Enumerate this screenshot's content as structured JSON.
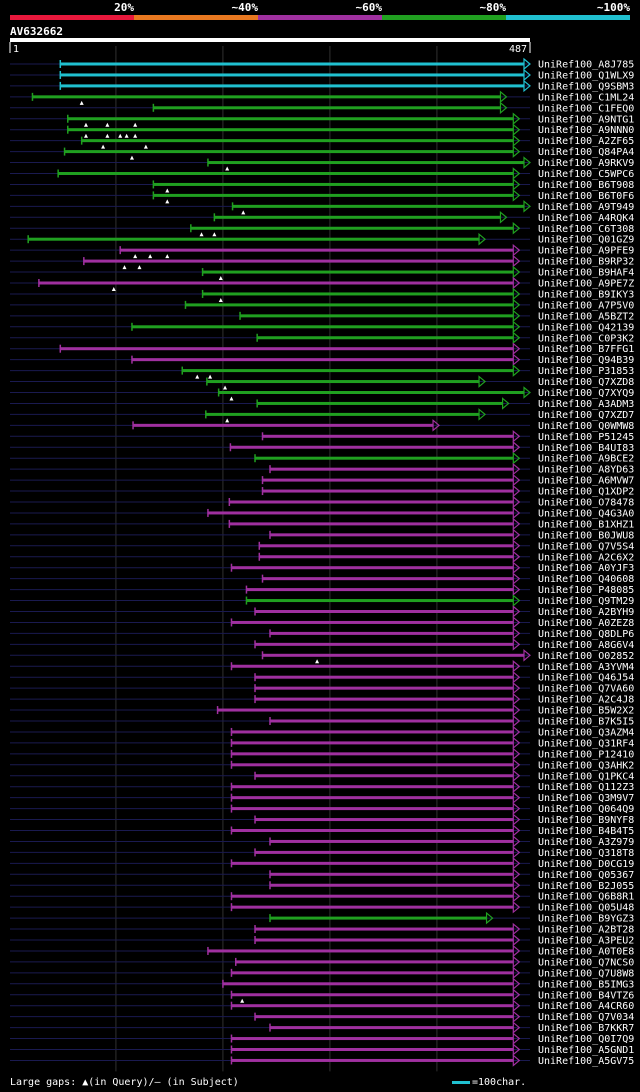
{
  "query": {
    "name": "AV632662",
    "start": "1",
    "end": "487",
    "length": 487
  },
  "identity_bins": [
    {
      "label": "20%",
      "color": "#e8183c"
    },
    {
      "label": "~40%",
      "color": "#e87820"
    },
    {
      "label": "~60%",
      "color": "#a030a0"
    },
    {
      "label": "~80%",
      "color": "#20a020"
    },
    {
      "label": "~100%",
      "color": "#20c0d0"
    }
  ],
  "footer": {
    "prefix": "Large gaps: ",
    "query_gap_text": "(in Query)/",
    "subject_gap_text": "— (in Subject)",
    "legend_text": "=100char."
  },
  "colors": {
    "cyan": "#20c0d0",
    "green": "#20a020",
    "magenta": "#a030a0",
    "navy": "#1a1a50",
    "gray": "#303030"
  },
  "chart_data": {
    "type": "alignment",
    "x_range": [
      1,
      487
    ],
    "hits": [
      {
        "name": "UniRef100_A8J785",
        "start": 48,
        "end": 487,
        "color": "cyan",
        "marks": []
      },
      {
        "name": "UniRef100_Q1WLX9",
        "start": 48,
        "end": 487,
        "color": "cyan",
        "marks": []
      },
      {
        "name": "UniRef100_Q9SBM3",
        "start": 48,
        "end": 487,
        "color": "cyan",
        "marks": []
      },
      {
        "name": "UniRef100_C1ML24",
        "start": 22,
        "end": 465,
        "color": "green",
        "marks": [
          68
        ]
      },
      {
        "name": "UniRef100_C1FEQ0",
        "start": 135,
        "end": 465,
        "color": "green",
        "marks": []
      },
      {
        "name": "UniRef100_A9NTG1",
        "start": 55,
        "end": 477,
        "color": "green",
        "marks": [
          72,
          92,
          118
        ]
      },
      {
        "name": "UniRef100_A9NNN0",
        "start": 55,
        "end": 477,
        "color": "green",
        "marks": [
          72,
          92,
          104,
          110,
          118
        ]
      },
      {
        "name": "UniRef100_A2ZF65",
        "start": 68,
        "end": 477,
        "color": "green",
        "marks": [
          88,
          128
        ]
      },
      {
        "name": "UniRef100_Q84PA4",
        "start": 52,
        "end": 477,
        "color": "green",
        "marks": [
          115
        ]
      },
      {
        "name": "UniRef100_A9RKV9",
        "start": 186,
        "end": 487,
        "color": "green",
        "marks": [
          204
        ]
      },
      {
        "name": "UniRef100_C5WPC6",
        "start": 46,
        "end": 477,
        "color": "green",
        "marks": []
      },
      {
        "name": "UniRef100_B6T908",
        "start": 135,
        "end": 477,
        "color": "green",
        "marks": [
          148
        ]
      },
      {
        "name": "UniRef100_B6T0F6",
        "start": 135,
        "end": 477,
        "color": "green",
        "marks": [
          148
        ]
      },
      {
        "name": "UniRef100_A9T949",
        "start": 209,
        "end": 487,
        "color": "green",
        "marks": [
          219
        ]
      },
      {
        "name": "UniRef100_A4RQK4",
        "start": 192,
        "end": 465,
        "color": "green",
        "marks": []
      },
      {
        "name": "UniRef100_C6T308",
        "start": 170,
        "end": 477,
        "color": "green",
        "marks": [
          180,
          192
        ]
      },
      {
        "name": "UniRef100_Q01GZ9",
        "start": 18,
        "end": 445,
        "color": "green",
        "marks": []
      },
      {
        "name": "UniRef100_A9PFE9",
        "start": 104,
        "end": 477,
        "color": "magenta",
        "marks": [
          118,
          132,
          148
        ]
      },
      {
        "name": "UniRef100_B9RP32",
        "start": 70,
        "end": 477,
        "color": "magenta",
        "marks": [
          108,
          122
        ]
      },
      {
        "name": "UniRef100_B9HAF4",
        "start": 181,
        "end": 477,
        "color": "green",
        "marks": [
          198
        ]
      },
      {
        "name": "UniRef100_A9PE7Z",
        "start": 28,
        "end": 477,
        "color": "magenta",
        "marks": [
          98
        ]
      },
      {
        "name": "UniRef100_B9IKY3",
        "start": 181,
        "end": 477,
        "color": "green",
        "marks": [
          198
        ]
      },
      {
        "name": "UniRef100_A7P5V0",
        "start": 165,
        "end": 477,
        "color": "green",
        "marks": []
      },
      {
        "name": "UniRef100_A5BZT2",
        "start": 216,
        "end": 477,
        "color": "green",
        "marks": []
      },
      {
        "name": "UniRef100_Q42139",
        "start": 115,
        "end": 477,
        "color": "green",
        "marks": []
      },
      {
        "name": "UniRef100_C0P3K2",
        "start": 232,
        "end": 477,
        "color": "green",
        "marks": []
      },
      {
        "name": "UniRef100_B7FFG1",
        "start": 48,
        "end": 477,
        "color": "magenta",
        "marks": []
      },
      {
        "name": "UniRef100_Q94B39",
        "start": 115,
        "end": 477,
        "color": "magenta",
        "marks": []
      },
      {
        "name": "UniRef100_P31853",
        "start": 162,
        "end": 477,
        "color": "green",
        "marks": [
          176,
          188
        ]
      },
      {
        "name": "UniRef100_Q7XZD8",
        "start": 185,
        "end": 445,
        "color": "green",
        "marks": [
          202
        ]
      },
      {
        "name": "UniRef100_Q7XYQ9",
        "start": 196,
        "end": 487,
        "color": "green",
        "marks": [
          208
        ]
      },
      {
        "name": "UniRef100_A3ADM3",
        "start": 232,
        "end": 467,
        "color": "green",
        "marks": []
      },
      {
        "name": "UniRef100_Q7XZD7",
        "start": 184,
        "end": 445,
        "color": "green",
        "marks": [
          204
        ]
      },
      {
        "name": "UniRef100_Q0WMW8",
        "start": 116,
        "end": 402,
        "color": "magenta",
        "marks": []
      },
      {
        "name": "UniRef100_P51245",
        "start": 237,
        "end": 477,
        "color": "magenta",
        "marks": []
      },
      {
        "name": "UniRef100_B4UI83",
        "start": 207,
        "end": 477,
        "color": "magenta",
        "marks": []
      },
      {
        "name": "UniRef100_A9BCE2",
        "start": 230,
        "end": 477,
        "color": "green",
        "marks": []
      },
      {
        "name": "UniRef100_A8YD63",
        "start": 244,
        "end": 477,
        "color": "magenta",
        "marks": []
      },
      {
        "name": "UniRef100_A6MVW7",
        "start": 237,
        "end": 477,
        "color": "magenta",
        "marks": []
      },
      {
        "name": "UniRef100_Q1XDP2",
        "start": 237,
        "end": 477,
        "color": "magenta",
        "marks": []
      },
      {
        "name": "UniRef100_O78478",
        "start": 206,
        "end": 477,
        "color": "magenta",
        "marks": []
      },
      {
        "name": "UniRef100_Q4G3A0",
        "start": 186,
        "end": 477,
        "color": "magenta",
        "marks": []
      },
      {
        "name": "UniRef100_B1XHZ1",
        "start": 206,
        "end": 477,
        "color": "magenta",
        "marks": []
      },
      {
        "name": "UniRef100_B0JWU8",
        "start": 244,
        "end": 477,
        "color": "magenta",
        "marks": []
      },
      {
        "name": "UniRef100_Q7V5S4",
        "start": 234,
        "end": 477,
        "color": "magenta",
        "marks": []
      },
      {
        "name": "UniRef100_A2C6X2",
        "start": 234,
        "end": 477,
        "color": "magenta",
        "marks": []
      },
      {
        "name": "UniRef100_A0YJF3",
        "start": 208,
        "end": 477,
        "color": "magenta",
        "marks": []
      },
      {
        "name": "UniRef100_Q40608",
        "start": 237,
        "end": 477,
        "color": "magenta",
        "marks": []
      },
      {
        "name": "UniRef100_P48085",
        "start": 222,
        "end": 477,
        "color": "magenta",
        "marks": []
      },
      {
        "name": "UniRef100_Q9TM29",
        "start": 222,
        "end": 477,
        "color": "green",
        "marks": []
      },
      {
        "name": "UniRef100_A2BYH9",
        "start": 230,
        "end": 477,
        "color": "magenta",
        "marks": []
      },
      {
        "name": "UniRef100_A0ZEZ8",
        "start": 208,
        "end": 477,
        "color": "magenta",
        "marks": []
      },
      {
        "name": "UniRef100_Q8DLP6",
        "start": 244,
        "end": 477,
        "color": "magenta",
        "marks": []
      },
      {
        "name": "UniRef100_A8G6V4",
        "start": 230,
        "end": 477,
        "color": "magenta",
        "marks": []
      },
      {
        "name": "UniRef100_O02852",
        "start": 237,
        "end": 487,
        "color": "magenta",
        "marks": [
          288
        ]
      },
      {
        "name": "UniRef100_A3YVM4",
        "start": 208,
        "end": 477,
        "color": "magenta",
        "marks": []
      },
      {
        "name": "UniRef100_Q46J54",
        "start": 230,
        "end": 477,
        "color": "magenta",
        "marks": []
      },
      {
        "name": "UniRef100_Q7VA60",
        "start": 230,
        "end": 477,
        "color": "magenta",
        "marks": []
      },
      {
        "name": "UniRef100_A2C4J8",
        "start": 230,
        "end": 477,
        "color": "magenta",
        "marks": []
      },
      {
        "name": "UniRef100_B5W2X2",
        "start": 195,
        "end": 477,
        "color": "magenta",
        "marks": []
      },
      {
        "name": "UniRef100_B7K5I5",
        "start": 244,
        "end": 477,
        "color": "magenta",
        "marks": []
      },
      {
        "name": "UniRef100_Q3AZM4",
        "start": 208,
        "end": 477,
        "color": "magenta",
        "marks": []
      },
      {
        "name": "UniRef100_Q31RF4",
        "start": 208,
        "end": 477,
        "color": "magenta",
        "marks": []
      },
      {
        "name": "UniRef100_P12410",
        "start": 208,
        "end": 477,
        "color": "magenta",
        "marks": []
      },
      {
        "name": "UniRef100_Q3AHK2",
        "start": 208,
        "end": 477,
        "color": "magenta",
        "marks": []
      },
      {
        "name": "UniRef100_Q1PKC4",
        "start": 230,
        "end": 477,
        "color": "magenta",
        "marks": []
      },
      {
        "name": "UniRef100_Q112Z3",
        "start": 208,
        "end": 477,
        "color": "magenta",
        "marks": []
      },
      {
        "name": "UniRef100_Q3M9V7",
        "start": 208,
        "end": 477,
        "color": "magenta",
        "marks": []
      },
      {
        "name": "UniRef100_Q064Q9",
        "start": 208,
        "end": 477,
        "color": "magenta",
        "marks": []
      },
      {
        "name": "UniRef100_B9NYF8",
        "start": 230,
        "end": 477,
        "color": "magenta",
        "marks": []
      },
      {
        "name": "UniRef100_B4B4T5",
        "start": 208,
        "end": 477,
        "color": "magenta",
        "marks": []
      },
      {
        "name": "UniRef100_A3Z979",
        "start": 244,
        "end": 477,
        "color": "magenta",
        "marks": []
      },
      {
        "name": "UniRef100_Q318T8",
        "start": 230,
        "end": 477,
        "color": "magenta",
        "marks": []
      },
      {
        "name": "UniRef100_D0CG19",
        "start": 208,
        "end": 477,
        "color": "magenta",
        "marks": []
      },
      {
        "name": "UniRef100_Q05367",
        "start": 244,
        "end": 477,
        "color": "magenta",
        "marks": []
      },
      {
        "name": "UniRef100_B2J055",
        "start": 244,
        "end": 477,
        "color": "magenta",
        "marks": []
      },
      {
        "name": "UniRef100_Q6B8R1",
        "start": 208,
        "end": 477,
        "color": "magenta",
        "marks": []
      },
      {
        "name": "UniRef100_Q05U48",
        "start": 208,
        "end": 477,
        "color": "magenta",
        "marks": []
      },
      {
        "name": "UniRef100_B9YGZ3",
        "start": 244,
        "end": 452,
        "color": "green",
        "marks": []
      },
      {
        "name": "UniRef100_A2BT28",
        "start": 230,
        "end": 477,
        "color": "magenta",
        "marks": []
      },
      {
        "name": "UniRef100_A3PEU2",
        "start": 230,
        "end": 477,
        "color": "magenta",
        "marks": []
      },
      {
        "name": "UniRef100_A0T0E8",
        "start": 186,
        "end": 477,
        "color": "magenta",
        "marks": []
      },
      {
        "name": "UniRef100_Q7NCS0",
        "start": 212,
        "end": 477,
        "color": "magenta",
        "marks": []
      },
      {
        "name": "UniRef100_Q7U8W8",
        "start": 208,
        "end": 477,
        "color": "magenta",
        "marks": []
      },
      {
        "name": "UniRef100_B5IMG3",
        "start": 200,
        "end": 477,
        "color": "magenta",
        "marks": []
      },
      {
        "name": "UniRef100_B4VTZ6",
        "start": 208,
        "end": 477,
        "color": "magenta",
        "marks": [
          218
        ]
      },
      {
        "name": "UniRef100_A4CR60",
        "start": 208,
        "end": 477,
        "color": "magenta",
        "marks": []
      },
      {
        "name": "UniRef100_Q7V034",
        "start": 230,
        "end": 477,
        "color": "magenta",
        "marks": []
      },
      {
        "name": "UniRef100_B7KKR7",
        "start": 244,
        "end": 477,
        "color": "magenta",
        "marks": []
      },
      {
        "name": "UniRef100_Q0I7Q9",
        "start": 208,
        "end": 477,
        "color": "magenta",
        "marks": []
      },
      {
        "name": "UniRef100_A5GND1",
        "start": 208,
        "end": 477,
        "color": "magenta",
        "marks": []
      },
      {
        "name": "UniRef100_A5GV75",
        "start": 208,
        "end": 477,
        "color": "magenta",
        "marks": []
      }
    ]
  }
}
